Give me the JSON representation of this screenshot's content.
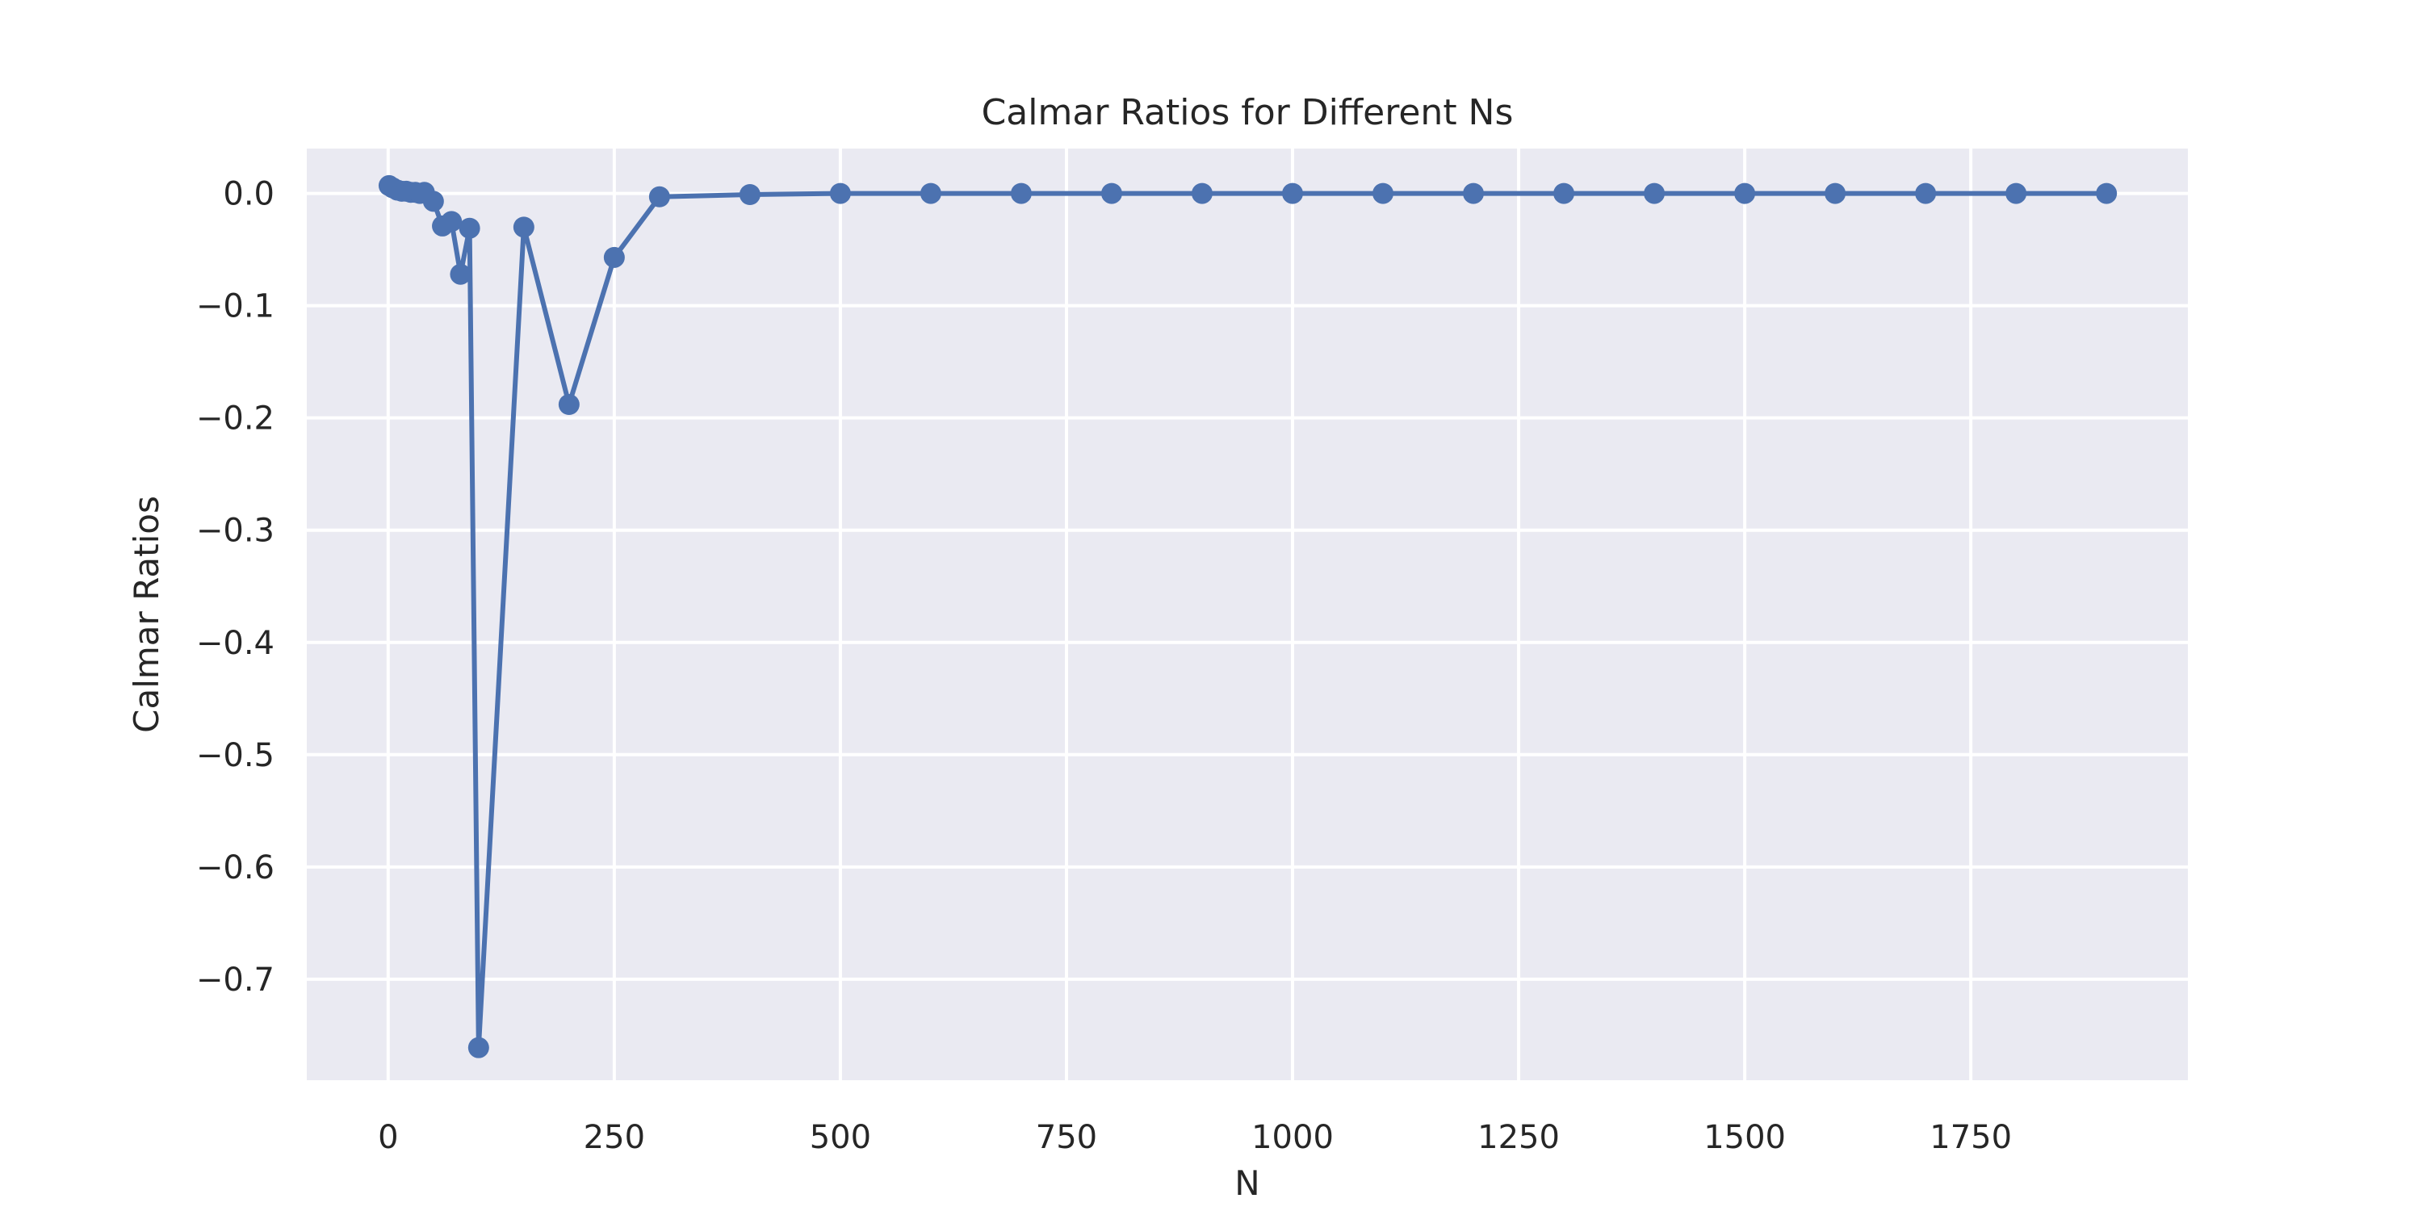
{
  "chart_data": {
    "type": "line",
    "title": "Calmar Ratios for Different Ns",
    "xlabel": "N",
    "ylabel": "Calmar Ratios",
    "xlim": [
      -90,
      1990
    ],
    "ylim": [
      -0.79,
      0.04
    ],
    "xticks": [
      0,
      250,
      500,
      750,
      1000,
      1250,
      1500,
      1750
    ],
    "xtick_labels": [
      "0",
      "250",
      "500",
      "750",
      "1000",
      "1250",
      "1500",
      "1750"
    ],
    "yticks": [
      0.0,
      -0.1,
      -0.2,
      -0.3,
      -0.4,
      -0.5,
      -0.6,
      -0.7
    ],
    "ytick_labels": [
      "0.0",
      "−0.1",
      "−0.2",
      "−0.3",
      "−0.4",
      "−0.5",
      "−0.6",
      "−0.7"
    ],
    "grid": true,
    "colors": {
      "series": "#4c72b0",
      "background": "#eaeaf2",
      "grid": "#ffffff"
    },
    "x": [
      1,
      5,
      10,
      15,
      20,
      25,
      30,
      35,
      40,
      50,
      60,
      70,
      80,
      90,
      100,
      150,
      200,
      250,
      300,
      400,
      500,
      600,
      700,
      800,
      900,
      1000,
      1100,
      1200,
      1300,
      1400,
      1500,
      1600,
      1700,
      1800,
      1900
    ],
    "series": [
      {
        "values": [
          0.007,
          0.005,
          0.003,
          0.002,
          0.002,
          0.001,
          0.001,
          0.0,
          0.001,
          -0.007,
          -0.029,
          -0.025,
          -0.072,
          -0.031,
          -0.761,
          -0.03,
          -0.188,
          -0.057,
          -0.003,
          -0.001,
          0.0,
          0.0,
          0.0,
          0.0,
          0.0,
          0.0,
          0.0,
          0.0,
          0.0,
          0.0,
          0.0,
          0.0,
          0.0,
          0.0,
          0.0
        ]
      }
    ]
  }
}
